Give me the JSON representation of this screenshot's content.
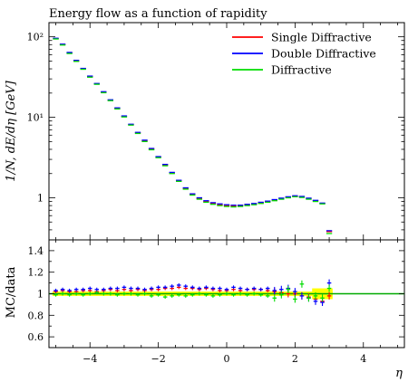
{
  "chart_data": {
    "type": "line",
    "title": "Energy flow as a function of rapidity",
    "xlabel": "η",
    "ylabel_main": "1/N, dE/dη [GeV]",
    "ylabel_ratio": "MC/data",
    "xlim": [
      -5.2,
      5.2
    ],
    "ylim_main": [
      0.3,
      150
    ],
    "y_scale_main": "log",
    "ylim_ratio": [
      0.5,
      1.5
    ],
    "x_ticks": [
      -4,
      -2,
      0,
      2,
      4
    ],
    "y_ticks_main": [
      {
        "value": 1,
        "label": "1"
      },
      {
        "value": 10,
        "label": "10¹"
      },
      {
        "value": 100,
        "label": "10²"
      }
    ],
    "y_ticks_ratio": [
      0.6,
      0.8,
      1,
      1.2,
      1.4
    ],
    "y_ticklabels_ratio": [
      "0.6",
      "0.8",
      "1",
      "1.2",
      "1.4"
    ],
    "legend_position": "top-right",
    "bin_width": 0.2,
    "bin_centers": [
      -5.0,
      -4.8,
      -4.6,
      -4.4,
      -4.2,
      -4.0,
      -3.8,
      -3.6,
      -3.4,
      -3.2,
      -3.0,
      -2.8,
      -2.6,
      -2.4,
      -2.2,
      -2.0,
      -1.8,
      -1.6,
      -1.4,
      -1.2,
      -1.0,
      -0.8,
      -0.6,
      -0.4,
      -0.2,
      0.0,
      0.2,
      0.4,
      0.6,
      0.8,
      1.0,
      1.2,
      1.4,
      1.6,
      1.8,
      2.0,
      2.2,
      2.4,
      2.6,
      2.8,
      3.0
    ],
    "series": [
      {
        "name": "Single Diffractive",
        "color": "#ff0000",
        "values": [
          95,
          80,
          63,
          50,
          40,
          32,
          26,
          20.5,
          16.3,
          12.9,
          10.2,
          8.1,
          6.4,
          5.1,
          4.0,
          3.2,
          2.55,
          2.03,
          1.62,
          1.3,
          1.1,
          0.98,
          0.9,
          0.85,
          0.82,
          0.8,
          0.79,
          0.8,
          0.82,
          0.84,
          0.87,
          0.9,
          0.94,
          0.98,
          1.02,
          1.05,
          1.03,
          0.98,
          0.92,
          0.85,
          0.38
        ],
        "ratio": [
          1.02,
          1.03,
          1.02,
          1.02,
          1.03,
          1.03,
          1.02,
          1.03,
          1.04,
          1.03,
          1.04,
          1.03,
          1.04,
          1.03,
          1.04,
          1.04,
          1.05,
          1.05,
          1.06,
          1.05,
          1.05,
          1.04,
          1.05,
          1.04,
          1.03,
          1.03,
          1.04,
          1.03,
          1.04,
          1.04,
          1.04,
          1.03,
          1.02,
          1.01,
          1.0,
          1.0,
          0.98,
          0.97,
          0.95,
          0.93,
          0.98
        ]
      },
      {
        "name": "Double Diffractive",
        "color": "#0000ff",
        "values": [
          96,
          81,
          64,
          51,
          40.5,
          32.5,
          26.3,
          20.8,
          16.5,
          13.1,
          10.4,
          8.2,
          6.5,
          5.2,
          4.1,
          3.25,
          2.6,
          2.07,
          1.65,
          1.33,
          1.12,
          1.0,
          0.92,
          0.87,
          0.84,
          0.82,
          0.81,
          0.81,
          0.83,
          0.85,
          0.88,
          0.91,
          0.95,
          0.99,
          1.03,
          1.06,
          1.04,
          0.99,
          0.93,
          0.86,
          0.39
        ],
        "ratio": [
          1.03,
          1.04,
          1.03,
          1.04,
          1.04,
          1.05,
          1.04,
          1.04,
          1.05,
          1.05,
          1.06,
          1.05,
          1.05,
          1.04,
          1.05,
          1.06,
          1.06,
          1.07,
          1.08,
          1.07,
          1.06,
          1.05,
          1.06,
          1.05,
          1.05,
          1.04,
          1.06,
          1.05,
          1.04,
          1.05,
          1.04,
          1.05,
          1.03,
          1.04,
          1.05,
          1.02,
          0.98,
          0.96,
          0.93,
          0.92,
          1.1
        ]
      },
      {
        "name": "Diffractive",
        "color": "#00dd00",
        "values": [
          94,
          79,
          62,
          49.5,
          39.5,
          31.5,
          25.7,
          20.2,
          16.1,
          12.7,
          10.1,
          8.0,
          6.3,
          5.0,
          3.95,
          3.15,
          2.5,
          2.0,
          1.6,
          1.28,
          1.08,
          0.96,
          0.88,
          0.83,
          0.8,
          0.78,
          0.77,
          0.78,
          0.8,
          0.82,
          0.85,
          0.88,
          0.92,
          0.96,
          1.0,
          1.03,
          1.01,
          0.96,
          0.9,
          0.84,
          0.36
        ],
        "ratio": [
          0.99,
          1.0,
          0.99,
          1.0,
          0.99,
          1.0,
          1.01,
          1.0,
          1.0,
          0.99,
          1.0,
          1.0,
          0.99,
          1.0,
          0.98,
          0.99,
          0.97,
          0.98,
          0.99,
          0.98,
          0.99,
          1.0,
          0.99,
          0.98,
          0.99,
          1.0,
          0.99,
          1.0,
          0.99,
          1.0,
          0.99,
          0.98,
          0.96,
          0.99,
          1.04,
          0.95,
          1.09,
          0.96,
          0.98,
          0.96,
          1.05
        ]
      }
    ]
  }
}
